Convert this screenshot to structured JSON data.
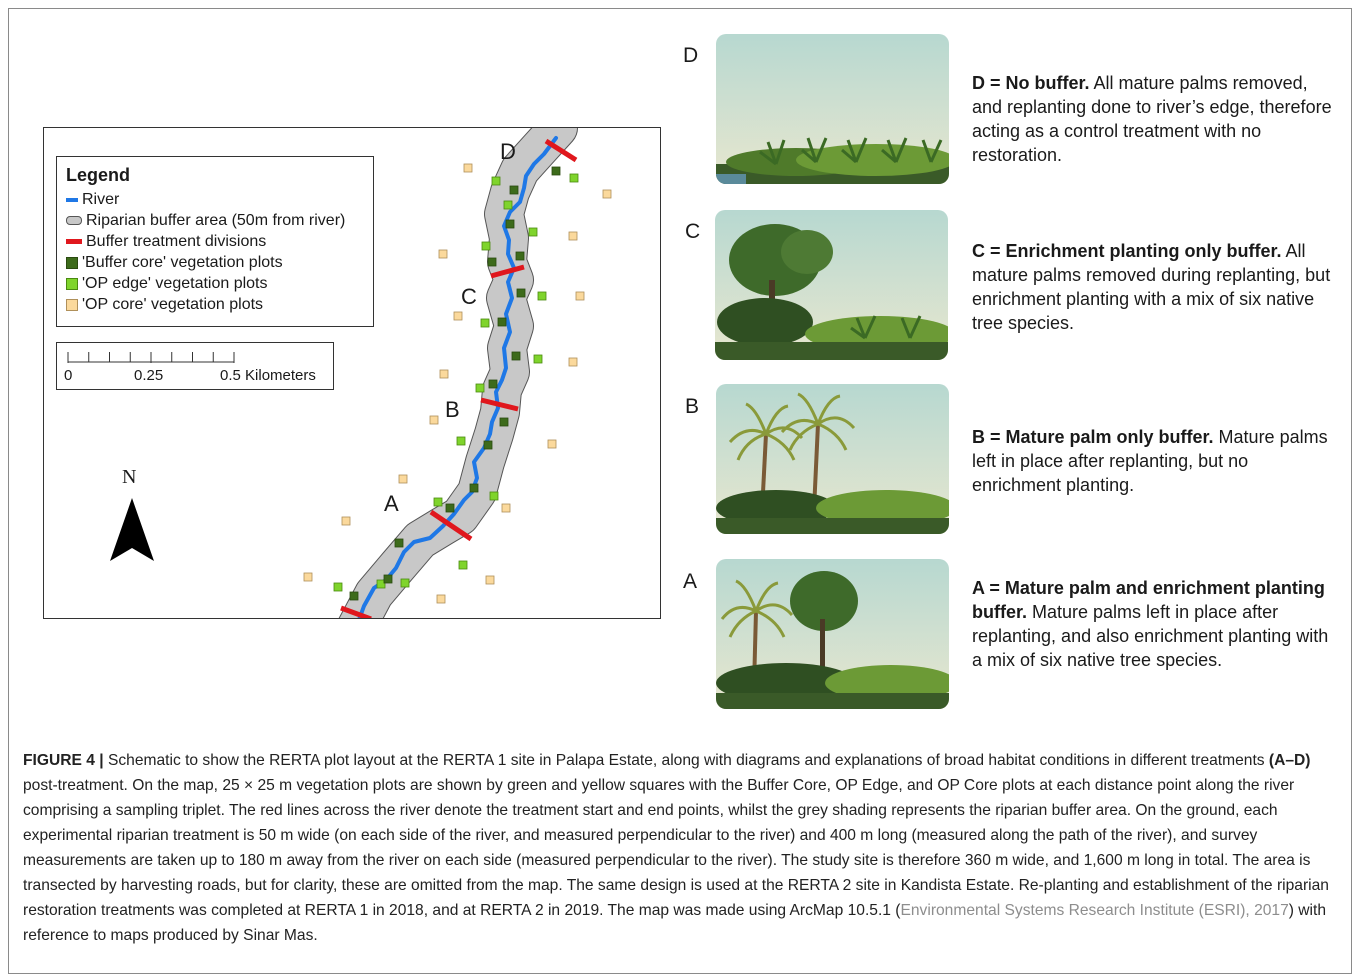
{
  "map": {
    "legend": {
      "title": "Legend",
      "items": [
        "River",
        "Riparian buffer area (50m from river)",
        "Buffer treatment divisions",
        "'Buffer core' vegetation plots",
        "'OP edge' vegetation plots",
        "'OP core' vegetation plots"
      ]
    },
    "scale": {
      "ticks": [
        "0",
        "0.25",
        "0.5 Kilometers"
      ]
    },
    "north": "N",
    "treatment_labels": [
      "D",
      "C",
      "B",
      "A"
    ]
  },
  "panels": [
    {
      "letter": "D",
      "heading": "D = No buffer.",
      "text": " All mature palms removed, and replanting done to river’s edge, therefore acting as a control treatment with no restoration."
    },
    {
      "letter": "C",
      "heading": "C = Enrichment planting only buffer.",
      "text": " All mature palms removed during replanting, but enrichment planting with a mix of six native tree species."
    },
    {
      "letter": "B",
      "heading": "B = Mature palm only buffer.",
      "text": " Mature palms left in place after replanting, but no enrichment planting."
    },
    {
      "letter": "A",
      "heading": "A = Mature palm and enrichment planting buffer.",
      "text": " Mature palms left in place after replanting, and also enrichment planting with a mix of six native tree species."
    }
  ],
  "caption": {
    "label": "FIGURE 4 |",
    "part1": " Schematic to show the RERTA plot layout at the RERTA 1 site in Palapa Estate, along with diagrams and explanations of broad habitat conditions in different treatments ",
    "bold_ref": "(A–D)",
    "part2": " post-treatment. On the map, 25 × 25 m vegetation plots are shown by green and yellow squares with the Buffer Core, OP Edge, and OP Core plots at each distance point along the river comprising a sampling triplet. The red lines across the river denote the treatment start and end points, whilst the grey shading represents the riparian buffer area. On the ground, each experimental riparian treatment is 50 m wide (on each side of the river, and measured perpendicular to the river) and 400 m long (measured along the path of the river), and survey measurements are taken up to 180 m away from the river on each side (measured perpendicular to the river). The study site is therefore 360 m wide, and 1,600 m long in total. The area is transected by harvesting roads, but for clarity, these are omitted from the map. The same design is used at the RERTA 2 site in Kandista Estate. Re-planting and establishment of the riparian restoration treatments was completed at RERTA 1 in 2018, and at RERTA 2 in 2019. The map was made using ArcMap 10.5.1 (",
    "citation": "Environmental Systems Research Institute (ESRI), 2017",
    "part3": ") with reference to maps produced by Sinar Mas."
  },
  "colors": {
    "river": "#1f78e6",
    "buffer": "#c8c8c8",
    "division": "#e0171d",
    "buffer_core": "#3d6b1b",
    "op_edge": "#7fd42c",
    "op_core": "#fbd99c"
  }
}
